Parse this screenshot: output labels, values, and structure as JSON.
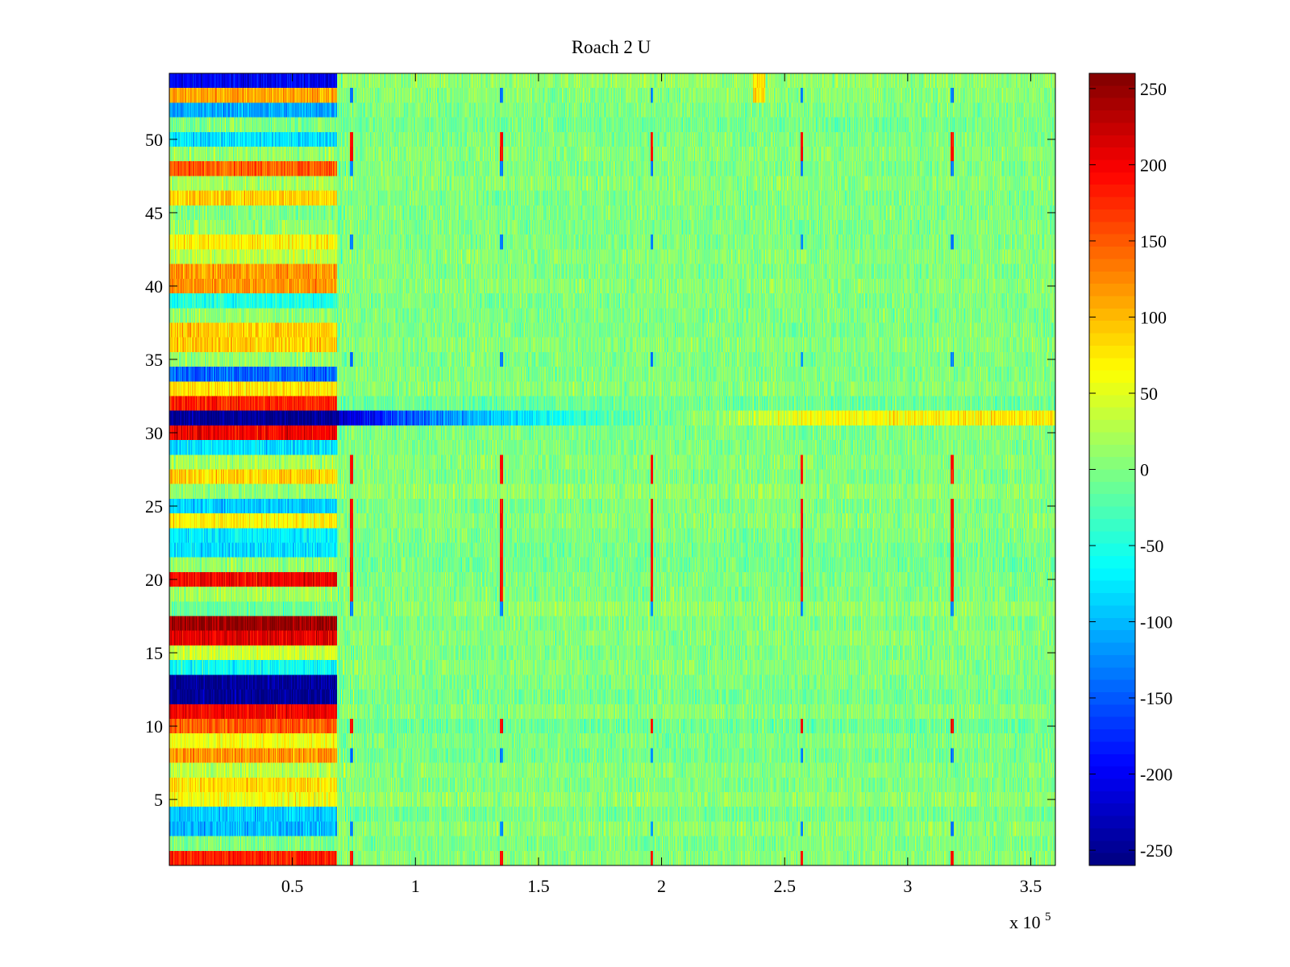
{
  "chart_data": {
    "type": "heatmap",
    "title": "Roach 2 U",
    "xlabel": "",
    "ylabel": "",
    "x_multiplier_label": {
      "base": "x 10",
      "exponent": "5"
    },
    "xlim": [
      0,
      3.6
    ],
    "ylim": [
      0.5,
      54.5
    ],
    "x_ticks": [
      0.5,
      1,
      1.5,
      2,
      2.5,
      3,
      3.5
    ],
    "x_tick_labels": [
      "0.5",
      "1",
      "1.5",
      "2",
      "2.5",
      "3",
      "3.5"
    ],
    "y_ticks": [
      5,
      10,
      15,
      20,
      25,
      30,
      35,
      40,
      45,
      50
    ],
    "y_tick_labels": [
      "5",
      "10",
      "15",
      "20",
      "25",
      "30",
      "35",
      "40",
      "45",
      "50"
    ],
    "n_rows": 54,
    "color_limits": [
      -260,
      260
    ],
    "colorbar": {
      "ticks": [
        250,
        200,
        150,
        100,
        50,
        0,
        -50,
        -100,
        -150,
        -200,
        -250
      ],
      "tick_labels": [
        "250",
        "200",
        "150",
        "100",
        "50",
        "0",
        "-50",
        "-100",
        "-150",
        "-200",
        "-250"
      ],
      "colormap": "jet"
    },
    "early_segment_end_x": 0.68,
    "early_segment_row_means": [
      180,
      0,
      -100,
      -90,
      60,
      80,
      30,
      120,
      60,
      150,
      200,
      -250,
      -250,
      -60,
      40,
      210,
      250,
      -10,
      20,
      200,
      10,
      -80,
      -70,
      70,
      -90,
      10,
      90,
      20,
      -80,
      200,
      -250,
      180,
      80,
      -140,
      10,
      90,
      90,
      10,
      -50,
      120,
      120,
      30,
      70,
      10,
      0,
      90,
      20,
      150,
      10,
      -80,
      0,
      -110,
      110,
      -200
    ],
    "late_segment_row_means": [
      5,
      0,
      8,
      -5,
      10,
      0,
      5,
      -5,
      0,
      -10,
      5,
      -5,
      0,
      5,
      0,
      5,
      0,
      10,
      0,
      0,
      -5,
      -5,
      0,
      5,
      0,
      10,
      0,
      5,
      0,
      0,
      -20,
      -10,
      5,
      0,
      0,
      5,
      0,
      0,
      0,
      5,
      0,
      5,
      0,
      0,
      0,
      0,
      5,
      0,
      5,
      0,
      -5,
      0,
      5,
      10
    ],
    "row31_profile": [
      {
        "x": 0.7,
        "value": -230
      },
      {
        "x": 1.0,
        "value": -140
      },
      {
        "x": 1.4,
        "value": -80
      },
      {
        "x": 1.75,
        "value": -30
      },
      {
        "x": 2.3,
        "value": 20
      },
      {
        "x": 2.6,
        "value": 60
      },
      {
        "x": 3.2,
        "value": 70
      },
      {
        "x": 3.6,
        "value": 80
      }
    ],
    "periodic_spike_x": [
      0.74,
      1.35,
      1.96,
      2.57,
      3.18
    ],
    "spike_rows_positive": [
      1,
      10,
      19,
      20,
      21,
      22,
      23,
      24,
      25,
      27,
      28,
      49,
      50
    ],
    "spike_rows_negative": [
      3,
      8,
      18,
      35,
      43,
      48,
      53
    ],
    "yellow_patch_x": [
      2.37,
      2.42
    ],
    "yellow_patch_rows": [
      53,
      54
    ]
  }
}
